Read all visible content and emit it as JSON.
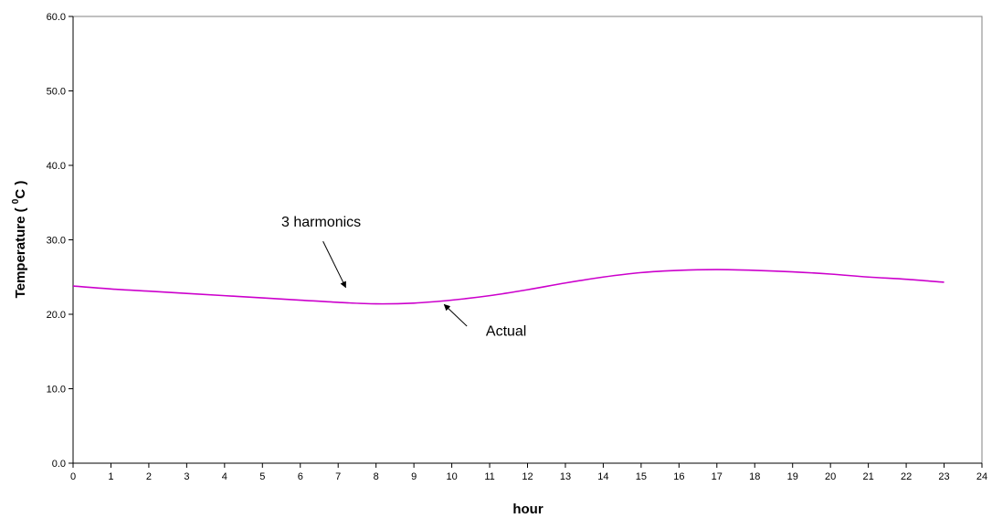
{
  "chart_data": {
    "type": "line",
    "title": "",
    "xlabel": "hour",
    "ylabel_main": "Temperature ( ",
    "ylabel_sup": "0",
    "ylabel_end": "C )",
    "xlim": [
      0,
      24
    ],
    "ylim": [
      0,
      60
    ],
    "x_ticks": [
      "0",
      "1",
      "2",
      "3",
      "4",
      "5",
      "6",
      "7",
      "8",
      "9",
      "10",
      "11",
      "12",
      "13",
      "14",
      "15",
      "16",
      "17",
      "18",
      "19",
      "20",
      "21",
      "22",
      "23",
      "24"
    ],
    "y_ticks": [
      "0.0",
      "10.0",
      "20.0",
      "30.0",
      "40.0",
      "50.0",
      "60.0"
    ],
    "grid": false,
    "legend": "none",
    "series": [
      {
        "color": "#cc00cc",
        "x": [
          0,
          1,
          2,
          3,
          4,
          5,
          6,
          7,
          8,
          9,
          10,
          11,
          12,
          13,
          14,
          15,
          16,
          17,
          18,
          19,
          20,
          21,
          22,
          23
        ],
        "y": [
          23.8,
          23.4,
          23.1,
          22.8,
          22.5,
          22.2,
          21.9,
          21.6,
          21.4,
          21.5,
          21.9,
          22.5,
          23.3,
          24.2,
          25.0,
          25.6,
          25.9,
          26.0,
          25.9,
          25.7,
          25.4,
          25.0,
          24.7,
          24.3
        ]
      }
    ],
    "annotations": [
      {
        "text": "3 harmonics",
        "label_x": 5.5,
        "label_y": 31.8,
        "arrow_from": [
          6.6,
          29.8
        ],
        "arrow_to": [
          7.2,
          23.6
        ]
      },
      {
        "text": "Actual",
        "label_x": 10.9,
        "label_y": 17.1,
        "arrow_from": [
          10.4,
          18.4
        ],
        "arrow_to": [
          9.8,
          21.3
        ]
      }
    ]
  }
}
